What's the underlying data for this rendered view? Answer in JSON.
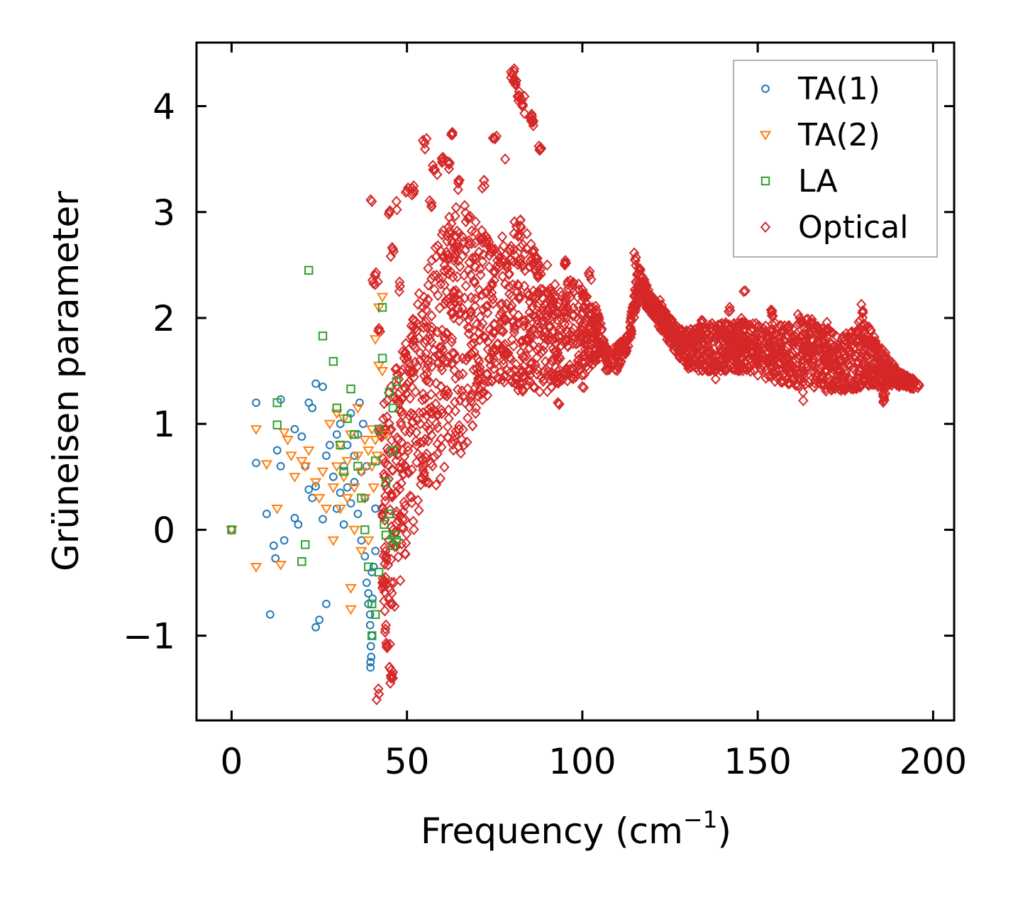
{
  "chart_data": {
    "type": "scatter",
    "title": "",
    "xlabel": "Frequency (cm",
    "xlabel_sup": "−1",
    "xlabel_end": ")",
    "ylabel": "Grüneisen parameter",
    "xlim": [
      -10,
      206
    ],
    "ylim": [
      -1.8,
      4.6
    ],
    "xticks": [
      0,
      50,
      100,
      150,
      200
    ],
    "yticks": [
      -1,
      0,
      1,
      2,
      3,
      4
    ],
    "xtick_labels": [
      "0",
      "50",
      "100",
      "150",
      "200"
    ],
    "ytick_labels": [
      "−1",
      "0",
      "1",
      "2",
      "3",
      "4"
    ],
    "grid": false,
    "legend_position": "top-right",
    "series": [
      {
        "name": "TA(1)",
        "marker": "circle",
        "color": "#1f77b4",
        "points": [
          [
            0,
            0
          ],
          [
            7,
            1.2
          ],
          [
            7,
            0.63
          ],
          [
            10,
            0.15
          ],
          [
            11,
            -0.8
          ],
          [
            12,
            -0.15
          ],
          [
            13,
            0.75
          ],
          [
            14,
            1.23
          ],
          [
            14,
            0.6
          ],
          [
            12.5,
            -0.27
          ],
          [
            15,
            -0.1
          ],
          [
            18,
            0.95
          ],
          [
            18,
            0.11
          ],
          [
            19,
            0.05
          ],
          [
            20,
            0.88
          ],
          [
            21,
            0.6
          ],
          [
            22,
            1.2
          ],
          [
            22,
            0.38
          ],
          [
            23,
            0.3
          ],
          [
            23,
            1.15
          ],
          [
            24,
            1.38
          ],
          [
            24,
            0.41
          ],
          [
            24,
            -0.92
          ],
          [
            25,
            -0.85
          ],
          [
            26,
            1.35
          ],
          [
            26,
            0.1
          ],
          [
            27,
            -0.7
          ],
          [
            27,
            0.7
          ],
          [
            28,
            0.8
          ],
          [
            29,
            0.5
          ],
          [
            30,
            0.9
          ],
          [
            30,
            0.2
          ],
          [
            31,
            1.0
          ],
          [
            31,
            0.35
          ],
          [
            32,
            0.6
          ],
          [
            32,
            0.05
          ],
          [
            33,
            0.4
          ],
          [
            33,
            0.8
          ],
          [
            34,
            1.1
          ],
          [
            34,
            0.25
          ],
          [
            35,
            0.7
          ],
          [
            35,
            0.45
          ],
          [
            36,
            0.9
          ],
          [
            36,
            0.15
          ],
          [
            37,
            0.55
          ],
          [
            37,
            -0.1
          ],
          [
            38,
            0.3
          ],
          [
            38,
            -0.25
          ],
          [
            38.5,
            -0.5
          ],
          [
            39,
            -0.6
          ],
          [
            39,
            -0.7
          ],
          [
            39.5,
            -0.8
          ],
          [
            39.5,
            -0.9
          ],
          [
            40,
            -1.0
          ],
          [
            39.7,
            -1.1
          ],
          [
            39.8,
            -1.2
          ],
          [
            39.6,
            -1.25
          ],
          [
            39.6,
            -1.3
          ],
          [
            40,
            -0.4
          ],
          [
            40.5,
            -0.35
          ],
          [
            40.2,
            -0.65
          ],
          [
            41,
            0.2
          ],
          [
            41,
            -0.2
          ],
          [
            38.5,
            0.6
          ],
          [
            37.5,
            1.0
          ],
          [
            36.5,
            1.2
          ]
        ]
      },
      {
        "name": "TA(2)",
        "marker": "triangle-down",
        "color": "#ff7f0e",
        "points": [
          [
            0,
            0
          ],
          [
            7,
            0.95
          ],
          [
            7,
            -0.35
          ],
          [
            10,
            0.62
          ],
          [
            13,
            0.2
          ],
          [
            14,
            -0.33
          ],
          [
            15,
            0.92
          ],
          [
            16,
            0.85
          ],
          [
            17,
            0.7
          ],
          [
            18,
            0.5
          ],
          [
            20,
            0.65
          ],
          [
            21,
            0.6
          ],
          [
            22,
            0.75
          ],
          [
            24,
            0.45
          ],
          [
            25,
            0.3
          ],
          [
            26,
            0.55
          ],
          [
            27,
            0.2
          ],
          [
            28,
            1.0
          ],
          [
            29,
            0.4
          ],
          [
            29,
            -0.1
          ],
          [
            30,
            1.1
          ],
          [
            30,
            0.6
          ],
          [
            31,
            0.8
          ],
          [
            31,
            0.2
          ],
          [
            32,
            0.5
          ],
          [
            32,
            1.05
          ],
          [
            33,
            0.65
          ],
          [
            33,
            0.3
          ],
          [
            34,
            0.9
          ],
          [
            34,
            -0.55
          ],
          [
            34,
            -0.75
          ],
          [
            35,
            0.4
          ],
          [
            35,
            0.0
          ],
          [
            36,
            0.7
          ],
          [
            36,
            1.15
          ],
          [
            37,
            0.55
          ],
          [
            37,
            -0.2
          ],
          [
            38,
            0.85
          ],
          [
            38,
            0.3
          ],
          [
            39,
            0.75
          ],
          [
            39,
            -0.1
          ],
          [
            40,
            0.95
          ],
          [
            40,
            0.6
          ],
          [
            41,
            0.85
          ],
          [
            41,
            1.8
          ],
          [
            42,
            1.55
          ],
          [
            42,
            2.1
          ],
          [
            43,
            1.5
          ],
          [
            43,
            2.2
          ],
          [
            44,
            0.9
          ],
          [
            41.5,
            0.7
          ],
          [
            40.5,
            0.4
          ]
        ]
      },
      {
        "name": "LA",
        "marker": "square",
        "color": "#2ca02c",
        "points": [
          [
            0,
            0
          ],
          [
            13,
            1.2
          ],
          [
            13,
            0.99
          ],
          [
            20,
            -0.3
          ],
          [
            21,
            -0.14
          ],
          [
            22,
            2.45
          ],
          [
            26,
            1.83
          ],
          [
            29,
            1.59
          ],
          [
            30,
            1.15
          ],
          [
            31,
            0.8
          ],
          [
            32,
            0.55
          ],
          [
            33,
            1.05
          ],
          [
            34,
            1.33
          ],
          [
            35,
            0.9
          ],
          [
            36,
            0.6
          ],
          [
            37,
            0.3
          ],
          [
            38,
            0.0
          ],
          [
            39,
            -0.35
          ],
          [
            40,
            -1.0
          ],
          [
            40,
            -0.7
          ],
          [
            41,
            -0.8
          ],
          [
            41,
            0.65
          ],
          [
            42,
            -0.4
          ],
          [
            42,
            0.95
          ],
          [
            43,
            1.62
          ],
          [
            43,
            2.1
          ],
          [
            43.5,
            0.05
          ],
          [
            44,
            -0.05
          ],
          [
            44,
            0.45
          ],
          [
            45,
            0.15
          ],
          [
            45,
            1.3
          ],
          [
            46,
            1.15
          ],
          [
            46,
            0.75
          ],
          [
            46,
            -0.15
          ],
          [
            46.5,
            -0.05
          ],
          [
            47,
            1.4
          ],
          [
            47,
            -0.1
          ]
        ]
      },
      {
        "name": "Optical",
        "marker": "diamond",
        "color": "#d62728",
        "generator": "dense",
        "sample_points": [
          [
            40,
            3.1
          ],
          [
            41,
            2.4
          ],
          [
            42,
            1.9
          ],
          [
            42.5,
            0.9
          ],
          [
            43,
            0.2
          ],
          [
            43.5,
            -0.5
          ],
          [
            44,
            -0.9
          ],
          [
            44.5,
            -1.1
          ],
          [
            45,
            -1.3
          ],
          [
            45.5,
            -1.4
          ],
          [
            46,
            -1.4
          ],
          [
            42,
            -1.55
          ],
          [
            45,
            3.0
          ],
          [
            46,
            2.65
          ],
          [
            47,
            3.1
          ],
          [
            48,
            2.3
          ],
          [
            50,
            3.2
          ],
          [
            52,
            3.2
          ],
          [
            55,
            3.65
          ],
          [
            57,
            3.05
          ],
          [
            58,
            3.4
          ],
          [
            60,
            3.5
          ],
          [
            62,
            3.45
          ],
          [
            63,
            3.75
          ],
          [
            65,
            3.3
          ],
          [
            72,
            3.3
          ],
          [
            75,
            3.7
          ],
          [
            78,
            3.5
          ],
          [
            80,
            4.3
          ],
          [
            81,
            4.2
          ],
          [
            82,
            4.1
          ],
          [
            83,
            4.0
          ],
          [
            85,
            3.9
          ],
          [
            86,
            3.85
          ],
          [
            88,
            3.6
          ],
          [
            90,
            2.5
          ],
          [
            93,
            1.2
          ],
          [
            95,
            2.5
          ],
          [
            100,
            1.35
          ],
          [
            102,
            2.4
          ],
          [
            104,
            1.65
          ],
          [
            107,
            1.6
          ],
          [
            110,
            1.7
          ],
          [
            114,
            1.85
          ],
          [
            115,
            2.55
          ],
          [
            118,
            2.3
          ],
          [
            122,
            2.1
          ],
          [
            126,
            1.8
          ],
          [
            130,
            1.6
          ],
          [
            134,
            1.95
          ],
          [
            138,
            1.5
          ],
          [
            142,
            2.1
          ],
          [
            146,
            2.25
          ],
          [
            150,
            1.7
          ],
          [
            154,
            2.05
          ],
          [
            158,
            1.55
          ],
          [
            162,
            2.0
          ],
          [
            163,
            1.22
          ],
          [
            166,
            1.35
          ],
          [
            170,
            1.9
          ],
          [
            174,
            1.6
          ],
          [
            178,
            1.4
          ],
          [
            180,
            2.05
          ],
          [
            184,
            1.7
          ],
          [
            186,
            1.25
          ],
          [
            190,
            1.45
          ],
          [
            194,
            1.4
          ],
          [
            196,
            1.36
          ]
        ]
      }
    ]
  }
}
